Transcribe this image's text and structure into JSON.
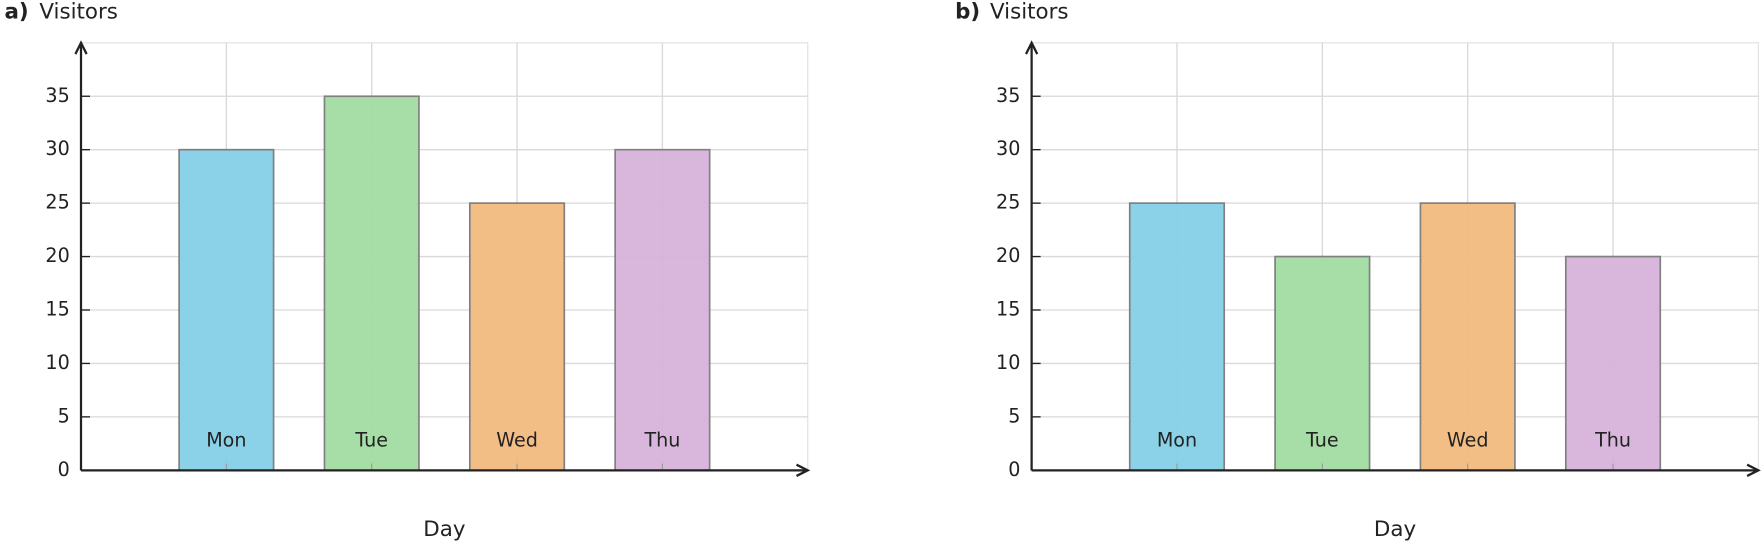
{
  "chart_data": [
    {
      "type": "bar",
      "panel_label": "a)",
      "title": "Visitors",
      "x_label": "Day",
      "categories": [
        "Mon",
        "Tue",
        "Wed",
        "Thu"
      ],
      "values": [
        30,
        35,
        25,
        30
      ],
      "colors": [
        "#85d0e8",
        "#a2dca2",
        "#f2bb80",
        "#d7b3da"
      ],
      "ylim": [
        0,
        40
      ],
      "yticks": [
        0,
        5,
        10,
        15,
        20,
        25,
        30,
        35
      ],
      "grid": true
    },
    {
      "type": "bar",
      "panel_label": "b)",
      "title": "Visitors",
      "x_label": "Day",
      "categories": [
        "Mon",
        "Tue",
        "Wed",
        "Thu"
      ],
      "values": [
        25,
        20,
        25,
        20
      ],
      "colors": [
        "#85d0e8",
        "#a2dca2",
        "#f2bb80",
        "#d7b3da"
      ],
      "ylim": [
        0,
        40
      ],
      "yticks": [
        0,
        5,
        10,
        15,
        20,
        25,
        30,
        35
      ],
      "grid": true
    }
  ]
}
